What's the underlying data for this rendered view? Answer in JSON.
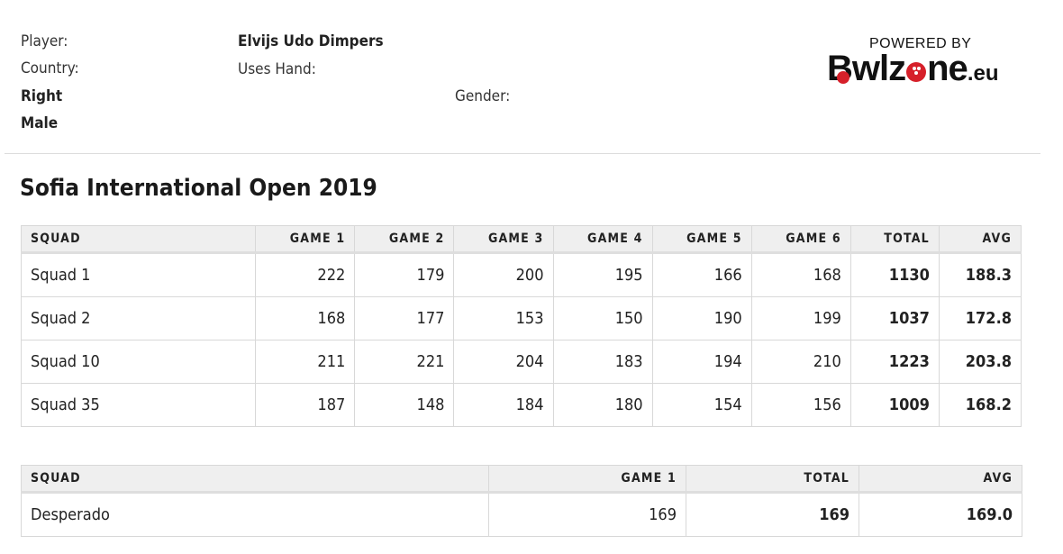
{
  "player_info": {
    "player_label": "Player:",
    "player_name": "Elvijs Udo Dimpers",
    "country_label": "Country:",
    "uses_hand_label": "Uses Hand:",
    "hand_value": "Right",
    "gender_label": "Gender:",
    "gender_value": "Male"
  },
  "logo": {
    "powered_by": "POWERED BY",
    "brand_part1": "B",
    "brand_part2": "wlz",
    "brand_part3": "ne",
    "brand_tld": ".eu"
  },
  "event": {
    "title": "Sofia International Open 2019"
  },
  "main_table": {
    "headers": [
      "SQUAD",
      "GAME 1",
      "GAME 2",
      "GAME 3",
      "GAME 4",
      "GAME 5",
      "GAME 6",
      "TOTAL",
      "AVG"
    ],
    "rows": [
      {
        "squad": "Squad 1",
        "games": [
          "222",
          "179",
          "200",
          "195",
          "166",
          "168"
        ],
        "total": "1130",
        "avg": "188.3"
      },
      {
        "squad": "Squad 2",
        "games": [
          "168",
          "177",
          "153",
          "150",
          "190",
          "199"
        ],
        "total": "1037",
        "avg": "172.8"
      },
      {
        "squad": "Squad 10",
        "games": [
          "211",
          "221",
          "204",
          "183",
          "194",
          "210"
        ],
        "total": "1223",
        "avg": "203.8"
      },
      {
        "squad": "Squad 35",
        "games": [
          "187",
          "148",
          "184",
          "180",
          "154",
          "156"
        ],
        "total": "1009",
        "avg": "168.2"
      }
    ]
  },
  "second_table": {
    "headers": [
      "SQUAD",
      "GAME 1",
      "TOTAL",
      "AVG"
    ],
    "rows": [
      {
        "squad": "Desperado",
        "game1": "169",
        "total": "169",
        "avg": "169.0"
      }
    ]
  }
}
